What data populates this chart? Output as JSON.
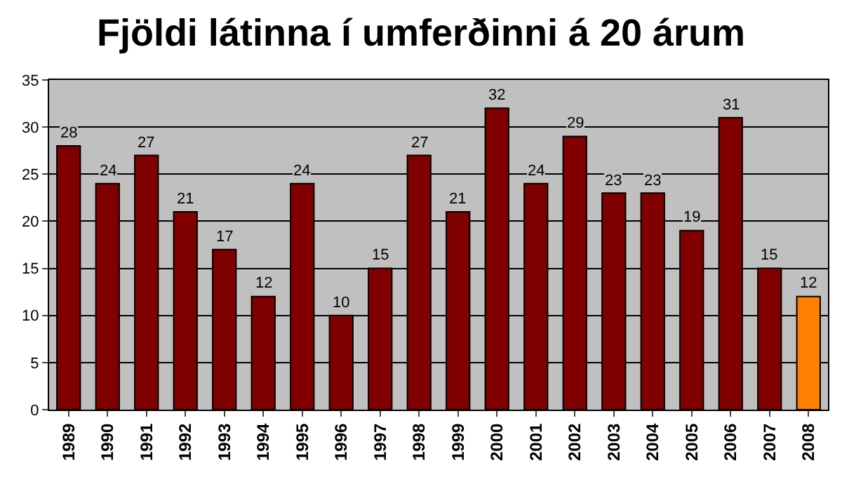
{
  "chart_data": {
    "type": "bar",
    "title": "Fjöldi látinna í umferðinni á 20 árum",
    "categories": [
      "1989",
      "1990",
      "1991",
      "1992",
      "1993",
      "1994",
      "1995",
      "1996",
      "1997",
      "1998",
      "1999",
      "2000",
      "2001",
      "2002",
      "2003",
      "2004",
      "2005",
      "2006",
      "2007",
      "2008"
    ],
    "values": [
      28,
      24,
      27,
      21,
      17,
      12,
      24,
      10,
      15,
      27,
      21,
      32,
      24,
      29,
      23,
      23,
      19,
      31,
      15,
      12
    ],
    "colors": [
      "#800000",
      "#800000",
      "#800000",
      "#800000",
      "#800000",
      "#800000",
      "#800000",
      "#800000",
      "#800000",
      "#800000",
      "#800000",
      "#800000",
      "#800000",
      "#800000",
      "#800000",
      "#800000",
      "#800000",
      "#800000",
      "#800000",
      "#ff8000"
    ],
    "ylim": [
      0,
      35
    ],
    "yticks": [
      0,
      5,
      10,
      15,
      20,
      25,
      30,
      35
    ],
    "grid": "y",
    "data_labels": true,
    "legend": false
  }
}
